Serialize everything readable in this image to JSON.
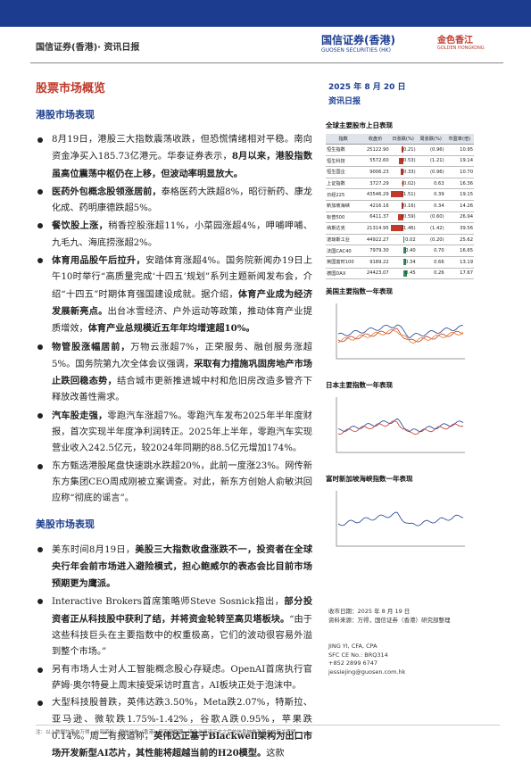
{
  "header": {
    "title": "国信证券(香港)· 资讯日报",
    "logo1": "国信证券(香港)",
    "logo1_en": "GUOSEN SECURITIES (HK)",
    "logo2": "金色香江",
    "logo2_en": "GOLDEN HONGKONG"
  },
  "title": "股票市场概览",
  "date": "2025 年 8 月 20 日",
  "report": "资讯日报",
  "sections": [
    {
      "title": "港股市场表现",
      "items": [
        [
          {
            "text": "8月19日，港股三大指数震荡收跌，但恐慌情绪相对平稳。南向资金净买入185.73亿港元。华泰证券表示，",
            "bold": false
          },
          {
            "text": "8月以来，港股指数虽高位震荡中枢仍在上移，但波动率明显放大。",
            "bold": true
          }
        ],
        [
          {
            "text": "医药外包概念股领涨居前，",
            "bold": true
          },
          {
            "text": "泰格医药大跌超8%，昭衍新药、康龙化成、药明康德跌超5%。",
            "bold": false
          }
        ],
        [
          {
            "text": "餐饮股上涨，",
            "bold": true
          },
          {
            "text": "稍香控股涨超11%，小菜园涨超4%，呷哺呷哺、九毛九、海底捞涨超2%。",
            "bold": false
          }
        ],
        [
          {
            "text": "体育用品股午后拉升，",
            "bold": true
          },
          {
            "text": "安踏体育涨超4%。国务院新闻办19日上午10时举行“高质量完成‘十四五’规划”系列主题新闻发布会，介绍“十四五”时期体育强国建设成就。据介绍，",
            "bold": false
          },
          {
            "text": "体育产业成为经济发展新亮点。",
            "bold": true
          },
          {
            "text": "出台冰雪经济、户外运动等政策，推动体育产业提质增效，",
            "bold": false
          },
          {
            "text": "体育产业总规模近五年年均增速超10%。",
            "bold": true
          }
        ],
        [
          {
            "text": "物管股涨幅居前，",
            "bold": true
          },
          {
            "text": "万物云涨超7%，正荣服务、融创服务涨超5%。国务院第九次全体会议强调，",
            "bold": false
          },
          {
            "text": "采取有力措施巩固房地产市场止跌回稳态势，",
            "bold": true
          },
          {
            "text": "结合城市更新推进城中村和危旧房改造多管齐下释放改善性需求。",
            "bold": false
          }
        ],
        [
          {
            "text": "汽车股走强，",
            "bold": true
          },
          {
            "text": "零跑汽车涨超7%。零跑汽车发布2025年半年度财报，首次实现半年度净利润转正。2025年上半年，零跑汽车实现营业收入242.5亿元，较2024年同期的88.5亿元增加174%。",
            "bold": false
          }
        ],
        [
          {
            "text": "东方甄选港股尾盘快速跳水跌超20%，此前一度涨23%。网传新东方集团CEO周成刚被立案调查。对此，新东方创始人俞敏洪回应称“彻底的谣言”。",
            "bold": false
          }
        ]
      ]
    },
    {
      "title": "美股市场表现",
      "items": [
        [
          {
            "text": "美东时间8月19日，",
            "bold": false
          },
          {
            "text": "美股三大指数收盘涨跌不一，投资者在全球央行年会前市场进入避险模式，担心鲍威尔的表态会比目前市场预期更为鹰派。",
            "bold": true
          }
        ],
        [
          {
            "text": "Interactive Brokers首席策略师Steve Sosnick指出，",
            "bold": false
          },
          {
            "text": "部分投资者正从科技股中获利了结，并将资金轮转至高贝塔板块。",
            "bold": true
          },
          {
            "text": "“由于这些科技巨头在主要指数中的权重极高，它们的波动很容易外溢到整个市场。”",
            "bold": false
          }
        ],
        [
          {
            "text": "另有市场人士对人工智能概念股心存疑虑。OpenAI首席执行官萨姆·奥尔特曼上周末接受采访时直言，AI板块正处于泡沫中。",
            "bold": false
          }
        ],
        [
          {
            "text": "大型科技股普跌，英伟达跌3.50%，Meta跌2.07%，特斯拉、亚马逊、微软跌1.75%-1.42%，谷歌A跌0.95%，苹果跌0.14%。周二有报道称，",
            "bold": false
          },
          {
            "text": "英伟达正基于Blackwell架构为出口市场开发新型AI芯片，其性能将超越当前的H20模型。",
            "bold": true
          },
          {
            "text": "这款",
            "bold": false
          }
        ]
      ]
    }
  ],
  "table": {
    "title": "全球主要股市上日表现",
    "headers": [
      "指数",
      "收盘价",
      "日涨跌(%)",
      "周涨跌(%)",
      "市盈率(倍)"
    ],
    "rows": [
      [
        "恒生指数",
        "25122.90",
        {
          "value": -0.21,
          "label": "(0.21)"
        },
        "(0.96)",
        "10.95"
      ],
      [
        "恒生科技",
        "5572.60",
        {
          "value": -0.53,
          "label": "(0.53)"
        },
        "(1.21)",
        "19.14"
      ],
      [
        "恒生国企",
        "9006.23",
        {
          "value": -0.33,
          "label": "(0.33)"
        },
        "(0.96)",
        "10.70"
      ],
      [
        "上证指数",
        "3727.29",
        {
          "value": -0.02,
          "label": "(0.02)"
        },
        "0.63",
        "16.36"
      ],
      [
        "日经225",
        "43546.29",
        {
          "value": -1.51,
          "label": "(1.51)"
        },
        "0.39",
        "19.15"
      ],
      [
        "新加坡海峡",
        "4216.16",
        {
          "value": -0.16,
          "label": "(0.16)"
        },
        "0.34",
        "14.26"
      ],
      [
        "标普500",
        "6411.37",
        {
          "value": -0.59,
          "label": "(0.59)"
        },
        "(0.60)",
        "26.94"
      ],
      [
        "纳斯达克",
        "21314.95",
        {
          "value": -1.46,
          "label": "(1.46)"
        },
        "(1.42)",
        "39.56"
      ],
      [
        "道琼斯工业",
        "44922.27",
        {
          "value": 0.02,
          "label": "0.02"
        },
        "(0.20)",
        "25.62"
      ],
      [
        "法国CAC40",
        "7979.30",
        {
          "value": 0.4,
          "label": "0.40"
        },
        "0.70",
        "16.65"
      ],
      [
        "英国富时100",
        "9189.22",
        {
          "value": 0.34,
          "label": "0.34"
        },
        "0.66",
        "13.19"
      ],
      [
        "德国DAX",
        "24423.07",
        {
          "value": 0.45,
          "label": "0.45"
        },
        "0.26",
        "17.67"
      ]
    ]
  },
  "charts": [
    "美国主要指数一年表现",
    "日本主要指数一年表现",
    "富时新加坡海峡指数一年表现"
  ],
  "notes": [
    "收市日期：2025 年 8 月 19 日",
    "资料来源：万得，国信证券（香港）研究部整理"
  ],
  "analyst": [
    "JING YI, CFA, CPA",
    "SFC CE No.: BRQ314",
    "+852 2899 6747",
    "jessiejing@guosen.com.hk"
  ],
  "footer": "注：以上数据均来自万得，公司资料：国信证券（香港）研究部整理。请务必阅读正文之后的信息披露及其中的有关声明。"
}
